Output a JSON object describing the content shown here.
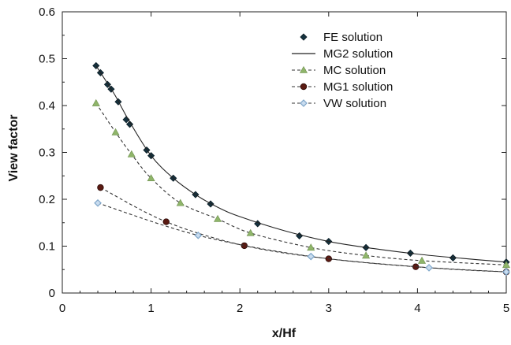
{
  "chart_data": {
    "type": "line",
    "title": "",
    "xlabel": "x/Hf",
    "ylabel": "View factor",
    "xlim": [
      0,
      5
    ],
    "ylim": [
      0,
      0.6
    ],
    "xticks": [
      0,
      1,
      2,
      3,
      4,
      5
    ],
    "yticks": [
      0,
      0.1,
      0.2,
      0.3,
      0.4,
      0.5,
      0.6
    ],
    "xtick_labels": [
      "0",
      "1",
      "2",
      "3",
      "4",
      "5"
    ],
    "ytick_labels": [
      "0",
      "0.1",
      "0.2",
      "0.3",
      "0.4",
      "0.5",
      "0.6"
    ],
    "grid": false,
    "legend_position": "top-right",
    "series": [
      {
        "name": "FE solution",
        "style": "markers",
        "marker": "diamond-filled",
        "color": "#15323f",
        "x": [
          0.38,
          0.43,
          0.51,
          0.55,
          0.63,
          0.72,
          0.76,
          0.95,
          1.0,
          1.25,
          1.5,
          1.67,
          2.2,
          2.67,
          3.0,
          3.42,
          3.92,
          4.4,
          5.0
        ],
        "y": [
          0.485,
          0.47,
          0.445,
          0.435,
          0.408,
          0.37,
          0.36,
          0.305,
          0.293,
          0.245,
          0.21,
          0.19,
          0.148,
          0.122,
          0.11,
          0.097,
          0.085,
          0.075,
          0.066
        ]
      },
      {
        "name": "MG2 solution",
        "style": "solid",
        "color": "#222222",
        "x": [
          0.38,
          0.5,
          0.6,
          0.75,
          1.0,
          1.25,
          1.5,
          1.75,
          2.0,
          2.5,
          3.0,
          3.5,
          4.0,
          4.5,
          5.0
        ],
        "y": [
          0.485,
          0.45,
          0.42,
          0.368,
          0.293,
          0.245,
          0.21,
          0.183,
          0.163,
          0.133,
          0.11,
          0.095,
          0.083,
          0.074,
          0.066
        ]
      },
      {
        "name": "MC solution",
        "style": "dashed",
        "marker": "triangle",
        "color": "#8fb56a",
        "x": [
          0.38,
          0.6,
          0.78,
          1.0,
          1.33,
          1.75,
          2.12,
          2.8,
          3.42,
          4.05,
          5.0
        ],
        "y": [
          0.405,
          0.343,
          0.296,
          0.245,
          0.192,
          0.158,
          0.128,
          0.097,
          0.08,
          0.069,
          0.06
        ]
      },
      {
        "name": "MG1 solution",
        "style": "dashed",
        "marker": "circle-filled",
        "color": "#5a1a12",
        "x": [
          0.43,
          1.17,
          2.05,
          3.0,
          3.98,
          5.0
        ],
        "y": [
          0.225,
          0.152,
          0.101,
          0.073,
          0.056,
          0.045
        ]
      },
      {
        "name": "VW solution",
        "style": "dashed",
        "marker": "diamond-open",
        "color": "#7fa6c9",
        "x": [
          0.4,
          1.53,
          2.8,
          4.13,
          5.0
        ],
        "y": [
          0.192,
          0.123,
          0.078,
          0.054,
          0.045
        ]
      }
    ]
  }
}
